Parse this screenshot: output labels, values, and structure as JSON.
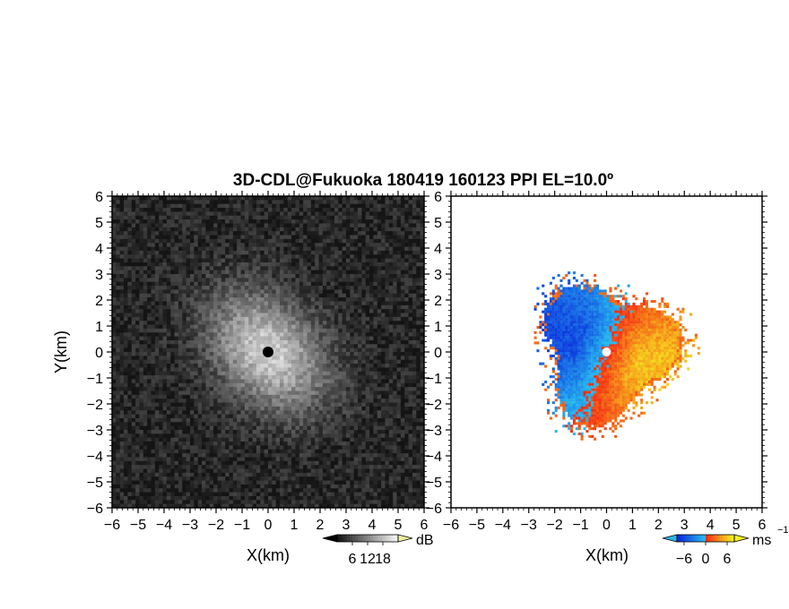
{
  "title": "3D-CDL@Fukuoka 180419 160123 PPI EL=10.0º",
  "chart_data": [
    {
      "type": "heatmap",
      "quantity": "reflectivity / SNR",
      "xlabel": "X(km)",
      "ylabel": "Y(km)",
      "xlim": [
        -6,
        6
      ],
      "ylim": [
        -6,
        6
      ],
      "xticks": [
        "−6",
        "−5",
        "−4",
        "−3",
        "−2",
        "−1",
        "0",
        "1",
        "2",
        "3",
        "4",
        "5",
        "6"
      ],
      "yticks": [
        "−6",
        "−5",
        "−4",
        "−3",
        "−2",
        "−1",
        "0",
        "1",
        "2",
        "3",
        "4",
        "5",
        "6"
      ],
      "colormap": "grayscale",
      "colorbar": {
        "unit": "dB",
        "ticks": [
          "6",
          "12",
          "18"
        ],
        "range": [
          0,
          24
        ]
      },
      "description_values": {
        "peak_center_db": 20,
        "background_db": 2,
        "blind_center_radius_km": 0.2
      }
    },
    {
      "type": "heatmap",
      "quantity": "radial velocity",
      "xlabel": "X(km)",
      "ylabel": "",
      "xlim": [
        -6,
        6
      ],
      "ylim": [
        -6,
        6
      ],
      "xticks": [
        "−6",
        "−5",
        "−4",
        "−3",
        "−2",
        "−1",
        "0",
        "1",
        "2",
        "3",
        "4",
        "5",
        "6"
      ],
      "yticks": [
        "−6",
        "−5",
        "−4",
        "−3",
        "−2",
        "−1",
        "0",
        "1",
        "2",
        "3",
        "4",
        "5",
        "6"
      ],
      "colormap": "blue-red diverging",
      "colorbar": {
        "unit": "ms",
        "unit_exponent": "−1",
        "ticks": [
          "−6",
          "0",
          "6"
        ],
        "range": [
          -8,
          8
        ]
      },
      "description_values": {
        "approaching_side": "west",
        "receding_side": "east",
        "max_range_km": 3.3
      }
    }
  ]
}
